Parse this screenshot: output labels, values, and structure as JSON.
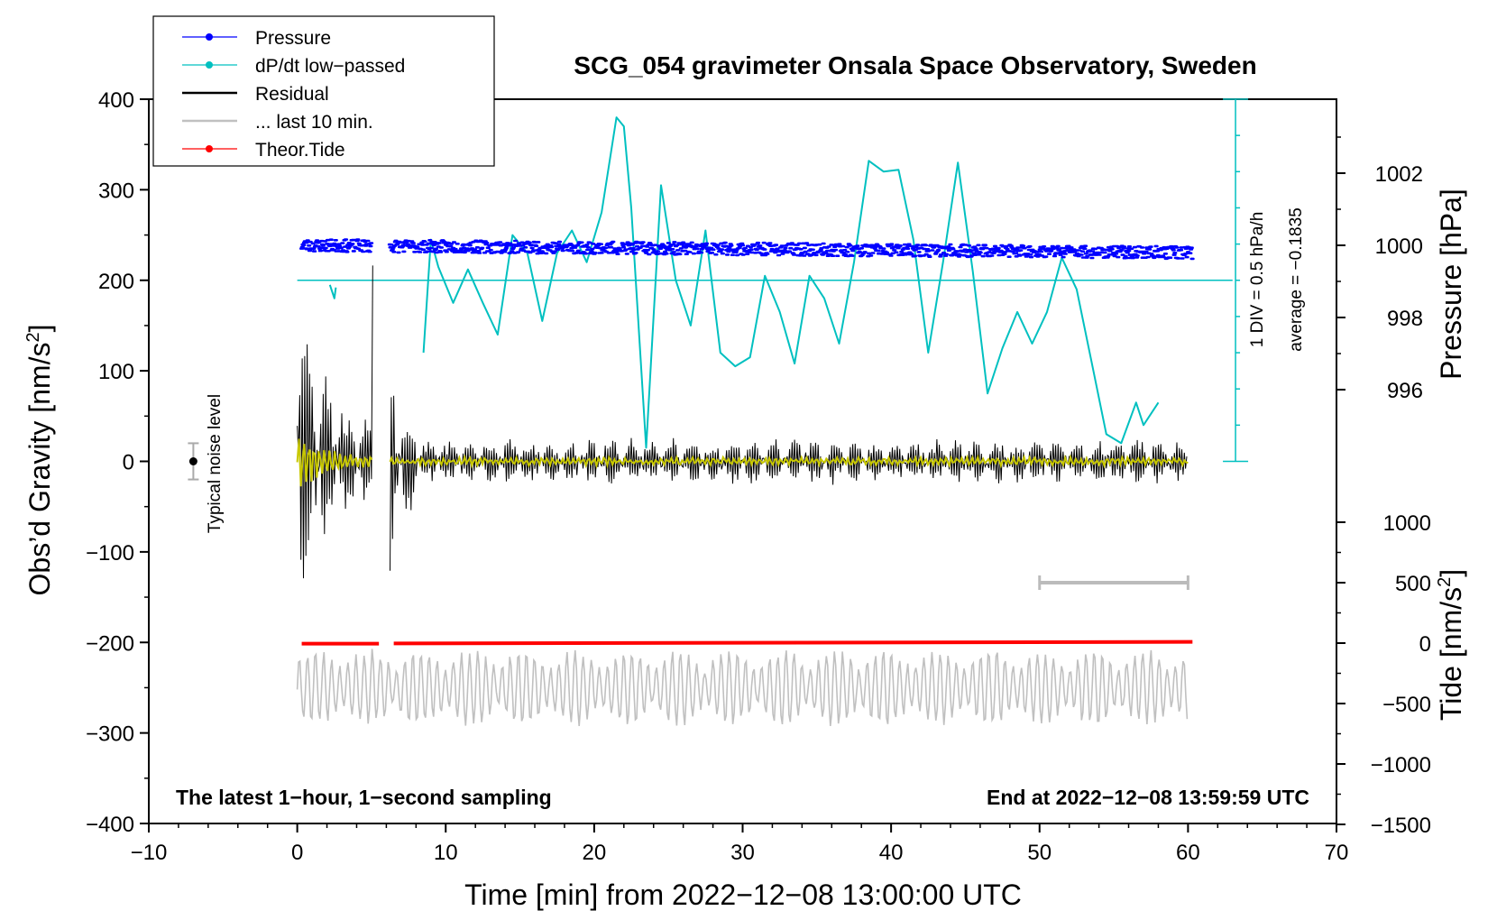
{
  "chart_data": {
    "type": "line",
    "title": "SCG_054 gravimeter Onsala Space Observatory, Sweden",
    "xlabel": "Time [min] from 2022−12−08 13:00:00 UTC",
    "xlim": [
      -10,
      70
    ],
    "x_ticks": [
      "−10",
      "0",
      "10",
      "20",
      "30",
      "40",
      "50",
      "60",
      "70"
    ],
    "left_axis": {
      "label": "Obs’d Gravity [nm/s",
      "label_sup": "2",
      "label_end": "]",
      "ylim": [
        -400,
        400
      ],
      "ticks": [
        "400",
        "300",
        "200",
        "100",
        "0",
        "−100",
        "−200",
        "−300",
        "−400"
      ]
    },
    "pressure_axis": {
      "label": "Pressure [hPa]",
      "range_hPa": [
        992,
        1004
      ],
      "ticks": [
        "1002",
        "1000",
        "998",
        "996"
      ]
    },
    "tide_axis": {
      "label": "Tide [nm/s",
      "label_sup": "2",
      "label_end": "]",
      "ylim": [
        -1500,
        1000
      ],
      "ticks": [
        "1000",
        "500",
        "0",
        "−500",
        "−1000",
        "−1500"
      ]
    },
    "legend": [
      {
        "label": "Pressure",
        "color": "#0000ff",
        "marker": "dot"
      },
      {
        "label": "dP/dt low−passed",
        "color": "#00c0c0",
        "marker": "dot"
      },
      {
        "label": "Residual",
        "color": "#000000",
        "marker": "none"
      },
      {
        "label": "... last 10 min.",
        "color": "#c0c0c0",
        "marker": "none"
      },
      {
        "label": "Theor.Tide",
        "color": "#ff0000",
        "marker": "dot"
      }
    ],
    "series": [
      {
        "name": "Pressure",
        "color": "#0000ff",
        "unit": "hPa",
        "x_range": [
          0.3,
          60.3
        ],
        "approx_level": 1000,
        "noise": 0.15
      },
      {
        "name": "dP/dt low-passed",
        "color": "#00c0c0",
        "x": [
          2.2,
          2.5,
          2.6,
          8.5,
          9,
          9.5,
          10.5,
          11.5,
          12.5,
          13.5,
          14.5,
          15.5,
          16.5,
          17.5,
          18.5,
          19.5,
          20.5,
          21.5,
          22,
          22.5,
          23.5,
          24.5,
          25.5,
          26.5,
          27.5,
          28.5,
          29.5,
          30.5,
          31.5,
          32.5,
          33.5,
          34.5,
          35.5,
          36.5,
          37.5,
          38.5,
          39.5,
          40.5,
          41.5,
          42.5,
          43.5,
          44.5,
          45.5,
          46.5,
          47.5,
          48.5,
          49.5,
          50.5,
          51.5,
          52.5,
          53.5,
          54.5,
          55.5,
          56.5,
          57,
          58
        ],
        "y_plot": [
          195,
          180,
          192,
          120,
          245,
          215,
          175,
          212,
          175,
          140,
          250,
          230,
          155,
          230,
          255,
          220,
          275,
          380,
          370,
          280,
          15,
          305,
          200,
          150,
          255,
          120,
          105,
          115,
          205,
          165,
          108,
          205,
          180,
          130,
          220,
          332,
          320,
          322,
          245,
          120,
          220,
          330,
          210,
          75,
          125,
          165,
          130,
          165,
          225,
          190,
          110,
          30,
          20,
          65,
          40,
          65
        ]
      },
      {
        "name": "Residual",
        "color": "#000000",
        "x_range": [
          0,
          60
        ],
        "amplitude_early": 180,
        "amplitude_late": 30
      },
      {
        "name": "Residual (smoothed)",
        "color": "#c8c800",
        "x_range": [
          0,
          60
        ]
      },
      {
        "name": "... last 10 min.",
        "color": "#c0c0c0",
        "offset_plot": -250,
        "amplitude": 40
      },
      {
        "name": "Theor.Tide",
        "color": "#ff0000",
        "x": [
          0.3,
          5.5,
          6.5,
          60.3
        ],
        "y": [
          -5,
          -5,
          -3,
          10
        ]
      }
    ],
    "pressure_marker": {
      "zero_line_plot": 200,
      "scale_label": "1 DIV = 0.5 hPa/h",
      "average_label": "average = −0.1835"
    },
    "noise_label": "Typical noise level",
    "noise_bar": {
      "x": -7,
      "y": 0,
      "err": 20
    },
    "last10_bar": {
      "x": [
        50,
        60
      ],
      "tide_y": 500
    },
    "note_left": "The latest 1−hour, 1−second sampling",
    "note_right": "End at 2022−12−08 13:59:59 UTC"
  }
}
